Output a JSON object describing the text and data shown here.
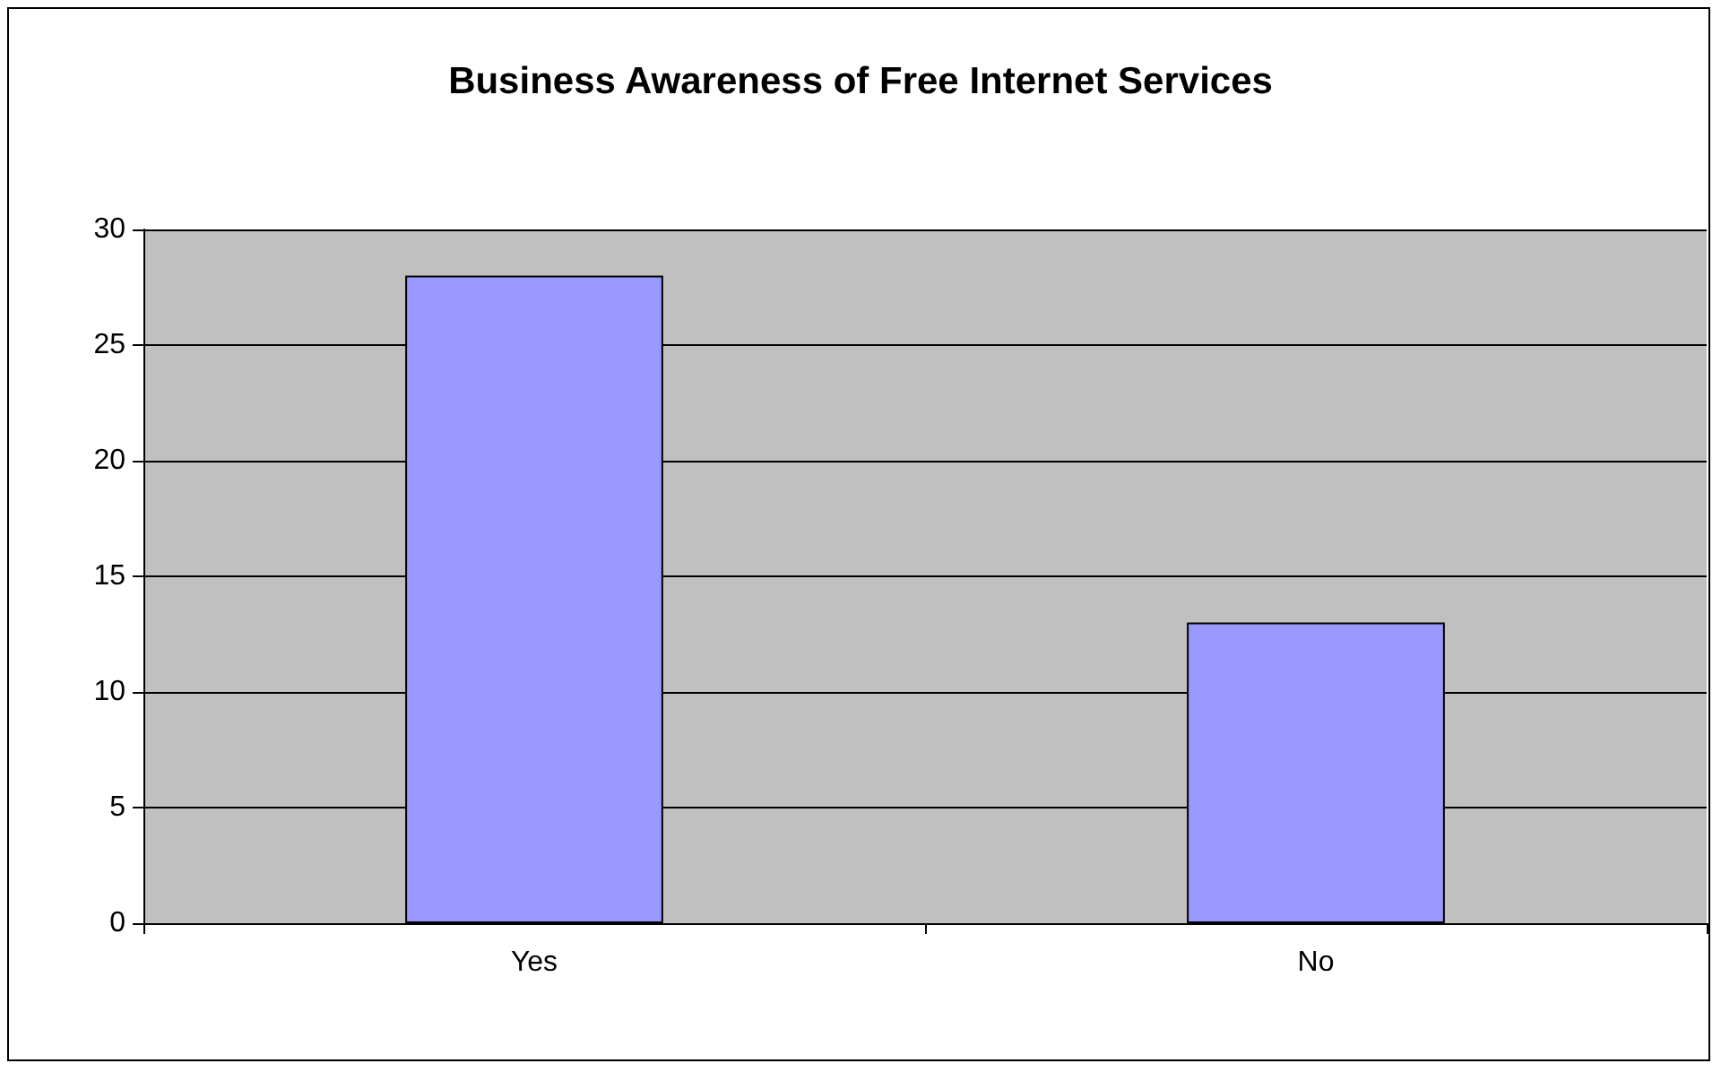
{
  "chart_data": {
    "type": "bar",
    "title": "Business Awareness of Free Internet Services",
    "categories": [
      "Yes",
      "No"
    ],
    "values": [
      28,
      13
    ],
    "color": "#9999ff",
    "ylim": [
      0,
      30
    ],
    "yticks": [
      0,
      5,
      10,
      15,
      20,
      25,
      30
    ],
    "grid": "y"
  }
}
